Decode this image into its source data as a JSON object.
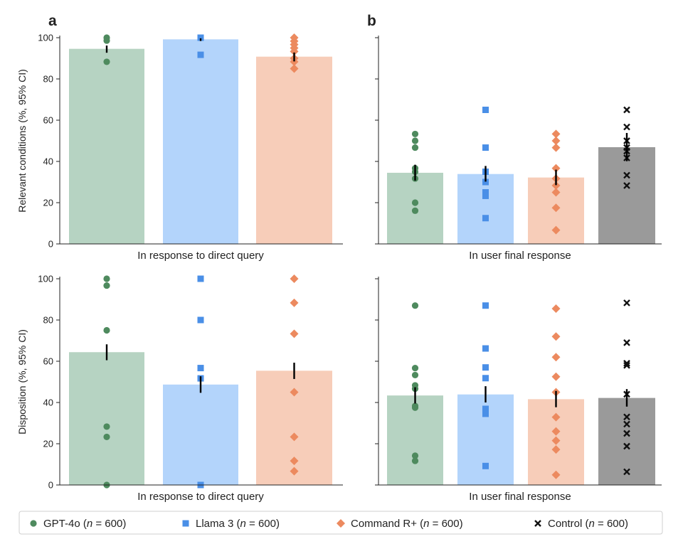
{
  "chart_data": {
    "type": "bar",
    "panel_labels": {
      "a": "a",
      "b": "b"
    },
    "y_axis_labels": {
      "top": "Relevant conditions (%, 95% CI)",
      "bottom": "Disposition (%, 95% CI)"
    },
    "x_axis_labels": {
      "left": "In response to direct query",
      "right": "In user final response"
    },
    "ylim": [
      0,
      100
    ],
    "y_ticks": [
      "0",
      "20",
      "40",
      "60",
      "80",
      "100"
    ],
    "grid": false,
    "legend_position": "bottom",
    "legend": {
      "items": [
        {
          "name": "GPT-4o",
          "n_text": "600"
        },
        {
          "name": "Llama 3",
          "n_text": "600"
        },
        {
          "name": "Command R+",
          "n_text": "600"
        },
        {
          "name": "Control",
          "n_text": "600"
        }
      ],
      "n_label": "n",
      "equals": " = ",
      "open_paren": " (",
      "close_paren": ")"
    },
    "series_colors": {
      "GPT-4o": {
        "bar": "#b6d3c2",
        "point": "#4e8a5e"
      },
      "Llama 3": {
        "bar": "#b3d4fb",
        "point": "#4a8fe7"
      },
      "Command R+": {
        "bar": "#f7cdb9",
        "point": "#ec8a5f"
      },
      "Control": {
        "bar": "#9a9a9a",
        "point": "#111111"
      }
    },
    "panels": [
      {
        "id": "a-top",
        "bars": [
          {
            "series": "GPT-4o",
            "value": 94.6,
            "ci": [
              92.7,
              96.2
            ],
            "points": [
              100,
              98.6,
              88.3
            ]
          },
          {
            "series": "Llama 3",
            "value": 99.2,
            "ci": [
              98.4,
              99.7
            ],
            "points": [
              100,
              91.7
            ]
          },
          {
            "series": "Command R+",
            "value": 90.8,
            "ci": [
              88.5,
              92.8
            ],
            "points": [
              100,
              98.3,
              96.7,
              95.0,
              93.3,
              90.0,
              88.3,
              85.0
            ]
          }
        ]
      },
      {
        "id": "b-top",
        "bars": [
          {
            "series": "GPT-4o",
            "value": 34.5,
            "ci": [
              30.7,
              38.4
            ],
            "points": [
              53.3,
              50.0,
              46.7,
              36.7,
              35.0,
              31.7,
              20.0,
              16.1
            ]
          },
          {
            "series": "Llama 3",
            "value": 33.9,
            "ci": [
              30.2,
              37.8
            ],
            "points": [
              65.0,
              46.7,
              35.0,
              30.0,
              25.0,
              23.3,
              12.5
            ]
          },
          {
            "series": "Command R+",
            "value": 32.2,
            "ci": [
              28.5,
              36.0
            ],
            "points": [
              53.3,
              50.0,
              46.7,
              36.7,
              31.7,
              28.3,
              25.0,
              17.5,
              6.7
            ]
          },
          {
            "series": "Control",
            "value": 46.9,
            "ci": [
              40.1,
              53.8
            ],
            "points": [
              65.0,
              56.7,
              50.0,
              46.7,
              45.0,
              41.7,
              33.3,
              28.3
            ]
          }
        ]
      },
      {
        "id": "a-bottom",
        "bars": [
          {
            "series": "GPT-4o",
            "value": 64.4,
            "ci": [
              60.5,
              68.2
            ],
            "points": [
              100,
              96.7,
              75.0,
              28.3,
              23.3,
              0
            ]
          },
          {
            "series": "Llama 3",
            "value": 48.7,
            "ci": [
              44.7,
              52.7
            ],
            "points": [
              100,
              80.0,
              56.7,
              51.7,
              0
            ]
          },
          {
            "series": "Command R+",
            "value": 55.4,
            "ci": [
              51.4,
              59.3
            ],
            "points": [
              100,
              88.3,
              73.3,
              45.0,
              23.3,
              11.7,
              6.7
            ]
          }
        ]
      },
      {
        "id": "b-bottom",
        "bars": [
          {
            "series": "GPT-4o",
            "value": 43.4,
            "ci": [
              39.5,
              47.4
            ],
            "points": [
              87.0,
              56.7,
              53.3,
              48.3,
              46.7,
              38.3,
              37.5,
              14.2,
              11.7
            ]
          },
          {
            "series": "Llama 3",
            "value": 43.9,
            "ci": [
              40.0,
              47.9
            ],
            "points": [
              87.0,
              66.2,
              57.0,
              51.8,
              36.9,
              35.0,
              34.5,
              9.2
            ]
          },
          {
            "series": "Command R+",
            "value": 41.6,
            "ci": [
              37.7,
              45.6
            ],
            "points": [
              85.5,
              72.0,
              62.0,
              52.5,
              45.0,
              32.9,
              26.0,
              21.5,
              17.2,
              4.9
            ]
          },
          {
            "series": "Control",
            "value": 42.2,
            "ci": [
              38.0,
              46.5
            ],
            "points": [
              88.3,
              69.0,
              59.0,
              58.0,
              44.0,
              33.0,
              29.5,
              25.0,
              18.8,
              6.4
            ]
          }
        ]
      }
    ]
  }
}
